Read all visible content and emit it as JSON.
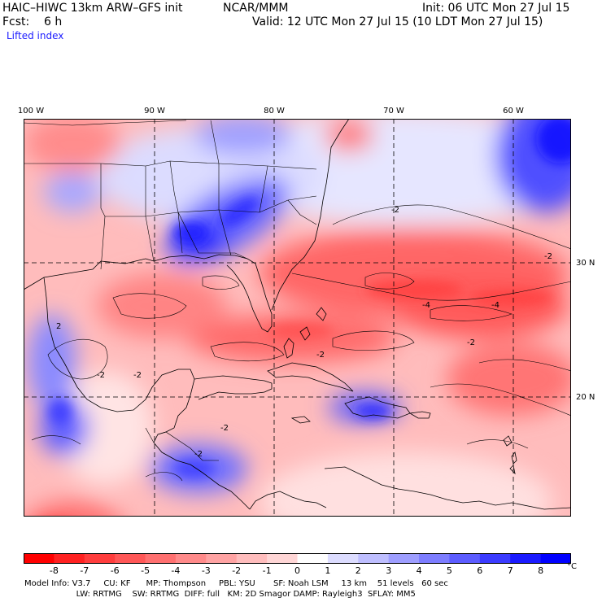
{
  "header": {
    "title": "HAIC–HIWC 13km ARW–GFS init",
    "org": "NCAR/MMM",
    "init": "Init: 06 UTC Mon 27 Jul 15",
    "fcst": "Fcst:    6 h",
    "valid": "Valid: 12 UTC Mon 27 Jul 15 (10 LDT Mon 27 Jul 15)",
    "field": "Lifted index"
  },
  "axes": {
    "longitudes": [
      "100 W",
      "90 W",
      "80 W",
      "70 W",
      "60 W"
    ],
    "latitudes": [
      "30 N",
      "20 N"
    ]
  },
  "contour_labels": [
    "-2",
    "-2",
    "-2",
    "-2",
    "-2",
    "-2",
    "-2",
    "-2",
    "-4",
    "-4",
    "2"
  ],
  "colorbar": {
    "levels": [
      "-8",
      "-7",
      "-6",
      "-5",
      "-4",
      "-3",
      "-2",
      "-1",
      "0",
      "1",
      "2",
      "3",
      "4",
      "5",
      "6",
      "7",
      "8"
    ],
    "colors": [
      "#ff0000",
      "#ff2121",
      "#ff3d3d",
      "#ff5757",
      "#ff7070",
      "#ff8a8a",
      "#ffa3a3",
      "#ffbdbd",
      "#ffd6d6",
      "#ffffff",
      "#dcdcff",
      "#bebeff",
      "#9e9eff",
      "#7d7dff",
      "#5c5cff",
      "#3b3bff",
      "#1a1aff",
      "#0000ff"
    ],
    "unit": "°C"
  },
  "footer": {
    "line1": "Model Info: V3.7     CU: KF      MP: Thompson     PBL: YSU       SF: Noah LSM     13 km    51 levels   60 sec",
    "line2": "                    LW: RRTMG    SW: RRTMG  DIFF: full   KM: 2D Smagor DAMP: Rayleigh3  SFLAY: MM5"
  }
}
